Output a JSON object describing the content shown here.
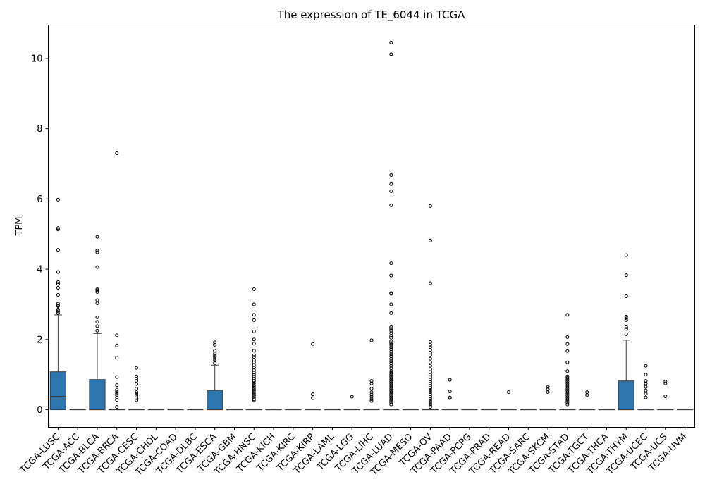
{
  "chart_data": {
    "type": "box",
    "title": "The expression of TE_6044 in TCGA",
    "xlabel": "",
    "ylabel": "TPM",
    "ylim": [
      -0.5,
      10.95
    ],
    "yticks": [
      0,
      2,
      4,
      6,
      8,
      10
    ],
    "grid": false,
    "legend": "none",
    "box_color": "#2e74ad",
    "categories": [
      "TCGA-LUSC",
      "TCGA-ACC",
      "TCGA-BLCA",
      "TCGA-BRCA",
      "TCGA-CESC",
      "TCGA-CHOL",
      "TCGA-COAD",
      "TCGA-DLBC",
      "TCGA-ESCA",
      "TCGA-GBM",
      "TCGA-HNSC",
      "TCGA-KICH",
      "TCGA-KIRC",
      "TCGA-KIRP",
      "TCGA-LAML",
      "TCGA-LGG",
      "TCGA-LIHC",
      "TCGA-LUAD",
      "TCGA-MESO",
      "TCGA-OV",
      "TCGA-PAAD",
      "TCGA-PCPG",
      "TCGA-PRAD",
      "TCGA-READ",
      "TCGA-SARC",
      "TCGA-SKCM",
      "TCGA-STAD",
      "TCGA-TGCT",
      "TCGA-THCA",
      "TCGA-THYM",
      "TCGA-UCEC",
      "TCGA-UCS",
      "TCGA-UVM"
    ],
    "boxes": [
      {
        "whislo": 0,
        "q1": 0,
        "med": 0.38,
        "q3": 1.08,
        "whishi": 2.7,
        "fliers": [
          5.98,
          5.17,
          5.13,
          4.55,
          3.92,
          3.63,
          3.58,
          3.47,
          3.27,
          3.02,
          2.97,
          2.95,
          2.85,
          2.8,
          2.75
        ]
      },
      {
        "whislo": 0,
        "q1": 0,
        "med": 0,
        "q3": 0,
        "whishi": 0,
        "fliers": []
      },
      {
        "whislo": 0,
        "q1": 0,
        "med": 0,
        "q3": 0.86,
        "whishi": 2.17,
        "fliers": [
          4.92,
          4.53,
          4.48,
          4.06,
          3.43,
          3.4,
          3.35,
          3.12,
          3.03,
          2.63,
          2.5,
          2.38,
          2.25
        ]
      },
      {
        "whislo": 0,
        "q1": 0,
        "med": 0,
        "q3": 0,
        "whishi": 0,
        "fliers": [
          7.3,
          2.12,
          1.83,
          1.48,
          0.93,
          0.7,
          0.57,
          0.52,
          0.47,
          0.42,
          0.35,
          0.28,
          0.08
        ]
      },
      {
        "whislo": 0,
        "q1": 0,
        "med": 0,
        "q3": 0,
        "whishi": 0,
        "fliers": [
          1.19,
          0.95,
          0.88,
          0.82,
          0.73,
          0.6,
          0.5,
          0.45,
          0.4,
          0.33,
          0.27
        ]
      },
      {
        "whislo": 0,
        "q1": 0,
        "med": 0,
        "q3": 0,
        "whishi": 0,
        "fliers": []
      },
      {
        "whislo": 0,
        "q1": 0,
        "med": 0,
        "q3": 0,
        "whishi": 0,
        "fliers": []
      },
      {
        "whislo": 0,
        "q1": 0,
        "med": 0,
        "q3": 0,
        "whishi": 0,
        "fliers": []
      },
      {
        "whislo": 0,
        "q1": 0,
        "med": 0,
        "q3": 0.55,
        "whishi": 1.27,
        "fliers": [
          1.92,
          1.85,
          1.68,
          1.6,
          1.55,
          1.5,
          1.45,
          1.4,
          1.33
        ]
      },
      {
        "whislo": 0,
        "q1": 0,
        "med": 0,
        "q3": 0,
        "whishi": 0,
        "fliers": []
      },
      {
        "whislo": 0,
        "q1": 0,
        "med": 0,
        "q3": 0,
        "whishi": 0,
        "fliers": [
          3.43,
          3.0,
          2.7,
          2.55,
          2.23,
          2.0,
          1.88,
          1.68,
          1.55,
          1.5,
          1.42,
          1.35,
          1.27,
          1.2,
          1.13,
          1.06,
          1.0,
          0.94,
          0.88,
          0.82,
          0.76,
          0.7,
          0.65,
          0.6,
          0.55,
          0.5,
          0.45,
          0.4,
          0.35,
          0.3,
          0.27
        ]
      },
      {
        "whislo": 0,
        "q1": 0,
        "med": 0,
        "q3": 0,
        "whishi": 0,
        "fliers": []
      },
      {
        "whislo": 0,
        "q1": 0,
        "med": 0,
        "q3": 0,
        "whishi": 0,
        "fliers": []
      },
      {
        "whislo": 0,
        "q1": 0,
        "med": 0,
        "q3": 0,
        "whishi": 0,
        "fliers": [
          1.87,
          0.44,
          0.33
        ]
      },
      {
        "whislo": 0,
        "q1": 0,
        "med": 0,
        "q3": 0,
        "whishi": 0,
        "fliers": []
      },
      {
        "whislo": 0,
        "q1": 0,
        "med": 0,
        "q3": 0,
        "whishi": 0,
        "fliers": [
          0.37
        ]
      },
      {
        "whislo": 0,
        "q1": 0,
        "med": 0,
        "q3": 0,
        "whishi": 0,
        "fliers": [
          1.98,
          0.82,
          0.75,
          0.6,
          0.5,
          0.43,
          0.37,
          0.3,
          0.25
        ]
      },
      {
        "whislo": 0,
        "q1": 0,
        "med": 0,
        "q3": 0,
        "whishi": 0,
        "fliers": [
          10.45,
          10.12,
          6.68,
          6.42,
          6.22,
          5.82,
          4.17,
          3.82,
          3.32,
          3.3,
          3.0,
          2.75,
          2.35,
          2.3,
          2.25,
          2.18,
          2.1,
          2.05,
          1.95,
          1.9,
          1.85,
          1.78,
          1.72,
          1.65,
          1.58,
          1.52,
          1.45,
          1.38,
          1.32,
          1.25,
          1.18,
          1.1,
          1.05,
          1.0,
          0.95,
          0.9,
          0.85,
          0.8,
          0.75,
          0.7,
          0.65,
          0.6,
          0.55,
          0.5,
          0.45,
          0.4,
          0.35,
          0.3,
          0.25,
          0.2,
          0.15
        ]
      },
      {
        "whislo": 0,
        "q1": 0,
        "med": 0,
        "q3": 0,
        "whishi": 0,
        "fliers": []
      },
      {
        "whislo": 0,
        "q1": 0,
        "med": 0,
        "q3": 0,
        "whishi": 0,
        "fliers": [
          5.8,
          4.82,
          3.6,
          1.93,
          1.85,
          1.78,
          1.7,
          1.62,
          1.55,
          1.45,
          1.35,
          1.25,
          1.15,
          1.07,
          1.0,
          0.93,
          0.86,
          0.8,
          0.74,
          0.68,
          0.62,
          0.56,
          0.5,
          0.44,
          0.38,
          0.32,
          0.27,
          0.22,
          0.17,
          0.12,
          0.08
        ]
      },
      {
        "whislo": 0,
        "q1": 0,
        "med": 0,
        "q3": 0,
        "whishi": 0,
        "fliers": [
          0.85,
          0.52,
          0.35,
          0.33
        ]
      },
      {
        "whislo": 0,
        "q1": 0,
        "med": 0,
        "q3": 0,
        "whishi": 0,
        "fliers": []
      },
      {
        "whislo": 0,
        "q1": 0,
        "med": 0,
        "q3": 0,
        "whishi": 0,
        "fliers": []
      },
      {
        "whislo": 0,
        "q1": 0,
        "med": 0,
        "q3": 0,
        "whishi": 0,
        "fliers": [
          0.5
        ]
      },
      {
        "whislo": 0,
        "q1": 0,
        "med": 0,
        "q3": 0,
        "whishi": 0,
        "fliers": []
      },
      {
        "whislo": 0,
        "q1": 0,
        "med": 0,
        "q3": 0,
        "whishi": 0,
        "fliers": [
          0.65,
          0.58,
          0.5
        ]
      },
      {
        "whislo": 0,
        "q1": 0,
        "med": 0,
        "q3": 0,
        "whishi": 0,
        "fliers": [
          2.7,
          2.07,
          1.87,
          1.67,
          1.35,
          1.1,
          0.95,
          0.9,
          0.85,
          0.8,
          0.75,
          0.7,
          0.65,
          0.6,
          0.55,
          0.5,
          0.45,
          0.4,
          0.35,
          0.3,
          0.25,
          0.2,
          0.15
        ]
      },
      {
        "whislo": 0,
        "q1": 0,
        "med": 0,
        "q3": 0,
        "whishi": 0,
        "fliers": [
          0.5,
          0.42
        ]
      },
      {
        "whislo": 0,
        "q1": 0,
        "med": 0,
        "q3": 0,
        "whishi": 0,
        "fliers": []
      },
      {
        "whislo": 0,
        "q1": 0,
        "med": 0,
        "q3": 0.82,
        "whishi": 1.98,
        "fliers": [
          4.4,
          3.83,
          3.23,
          2.65,
          2.6,
          2.55,
          2.35,
          2.3,
          2.15
        ]
      },
      {
        "whislo": 0,
        "q1": 0,
        "med": 0,
        "q3": 0,
        "whishi": 0,
        "fliers": [
          1.25,
          1.0,
          0.82,
          0.75,
          0.65,
          0.55,
          0.45,
          0.35
        ]
      },
      {
        "whislo": 0,
        "q1": 0,
        "med": 0,
        "q3": 0,
        "whishi": 0,
        "fliers": [
          0.8,
          0.75,
          0.38
        ]
      },
      {
        "whislo": 0,
        "q1": 0,
        "med": 0,
        "q3": 0,
        "whishi": 0,
        "fliers": []
      }
    ]
  }
}
